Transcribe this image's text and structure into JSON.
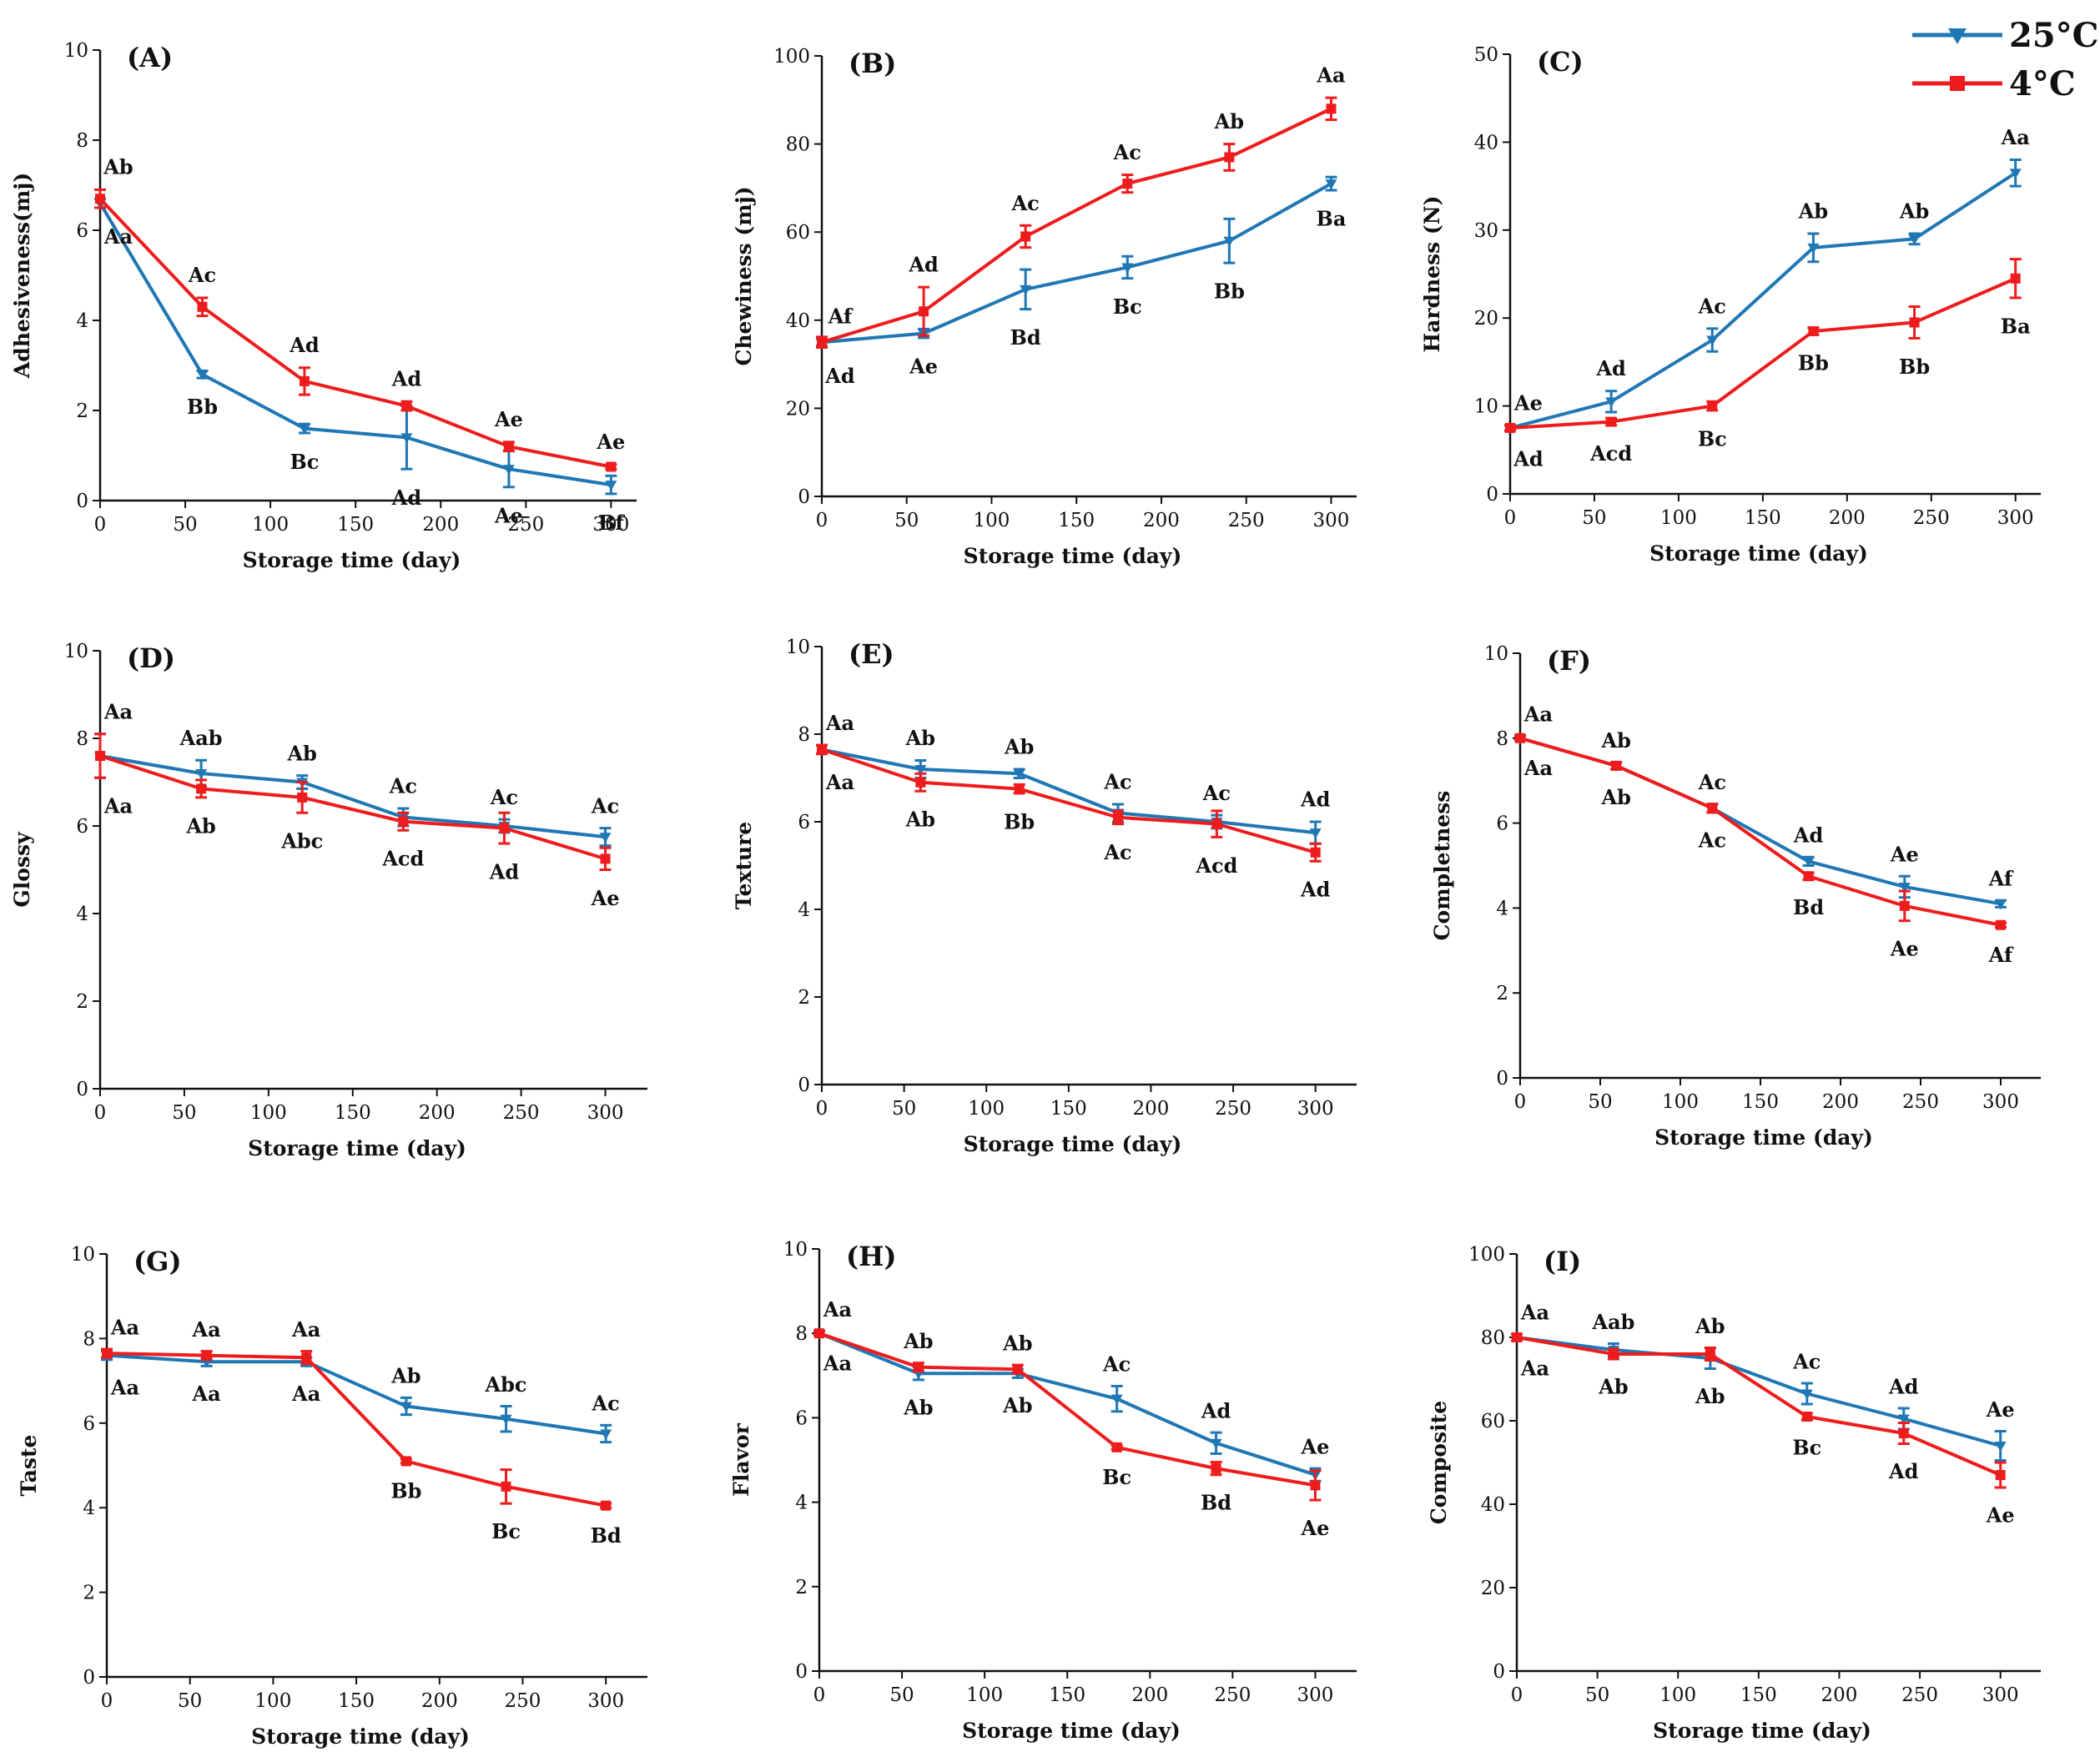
{
  "legend": {
    "items": [
      {
        "label": "25°C",
        "color": "#1f77b4",
        "marker": "triangle-down"
      },
      {
        "label": "4°C",
        "color": "#ee1c1c",
        "marker": "square"
      }
    ]
  },
  "chart_data": [
    {
      "type": "line",
      "title": "(A)",
      "xlabel": "Storage time (day)",
      "ylabel": "Adhesiveness(mj)",
      "x": [
        0,
        60,
        120,
        180,
        240,
        300
      ],
      "xlim": [
        0,
        315
      ],
      "ylim": [
        0,
        10
      ],
      "xticks": [
        0,
        50,
        100,
        150,
        200,
        250,
        300
      ],
      "yticks": [
        0,
        2,
        4,
        6,
        8,
        10
      ],
      "series": [
        {
          "name": "25°C",
          "values": [
            6.6,
            2.8,
            1.6,
            1.4,
            0.7,
            0.35
          ],
          "errors": [
            0.1,
            0.08,
            0.1,
            0.7,
            0.4,
            0.2
          ],
          "labels": [
            "Aa",
            "Bb",
            "Bc",
            "Ad",
            "Ae",
            "Bf"
          ]
        },
        {
          "name": "4°C",
          "values": [
            6.7,
            4.3,
            2.65,
            2.1,
            1.2,
            0.75
          ],
          "errors": [
            0.2,
            0.2,
            0.3,
            0.1,
            0.1,
            0.05
          ],
          "labels": [
            "Ab",
            "Ac",
            "Ad",
            "Ad",
            "Ae",
            "Ae"
          ]
        }
      ]
    },
    {
      "type": "line",
      "title": "(B)",
      "xlabel": "Storage time (day)",
      "ylabel": "Chewiness (mj)",
      "x": [
        0,
        60,
        120,
        180,
        240,
        300
      ],
      "xlim": [
        0,
        315
      ],
      "ylim": [
        0,
        100
      ],
      "xticks": [
        0,
        50,
        100,
        150,
        200,
        250,
        300
      ],
      "yticks": [
        0,
        20,
        40,
        60,
        80,
        100
      ],
      "series": [
        {
          "name": "25°C",
          "values": [
            35,
            37,
            47,
            52,
            58,
            71
          ],
          "errors": [
            0.8,
            1.0,
            4.5,
            2.5,
            5,
            1.5
          ],
          "labels": [
            "Af",
            "Ae",
            "Bd",
            "Bc",
            "Bb",
            "Ba"
          ]
        },
        {
          "name": "4°C",
          "values": [
            35,
            42,
            59,
            71,
            77,
            88
          ],
          "errors": [
            1.2,
            5.5,
            2.5,
            2,
            3,
            2.5
          ],
          "labels": [
            "Ad",
            "Ad",
            "Ac",
            "Ac",
            "Ab",
            "Aa"
          ]
        }
      ]
    },
    {
      "type": "line",
      "title": "(C)",
      "xlabel": "Storage time (day)",
      "ylabel": "Hardness (N)",
      "x": [
        0,
        60,
        120,
        180,
        240,
        300
      ],
      "xlim": [
        0,
        315
      ],
      "ylim": [
        0,
        50
      ],
      "xticks": [
        0,
        50,
        100,
        150,
        200,
        250,
        300
      ],
      "yticks": [
        0,
        10,
        20,
        30,
        40,
        50
      ],
      "series": [
        {
          "name": "25°C",
          "values": [
            7.5,
            10.5,
            17.5,
            28,
            29,
            36.5
          ],
          "errors": [
            0.3,
            1.2,
            1.3,
            1.6,
            0.6,
            1.5
          ],
          "labels": [
            "Ae",
            "Ad",
            "Ac",
            "Ab",
            "Ab",
            "Aa"
          ]
        },
        {
          "name": "4°C",
          "values": [
            7.5,
            8.2,
            10,
            18.5,
            19.5,
            24.5
          ],
          "errors": [
            0.3,
            0.4,
            0.5,
            0.4,
            1.8,
            2.2
          ],
          "labels": [
            "Ad",
            "Acd",
            "Bc",
            "Bb",
            "Bb",
            "Ba"
          ]
        }
      ]
    },
    {
      "type": "line",
      "title": "(D)",
      "xlabel": "Storage time (day)",
      "ylabel": "Glossy",
      "x": [
        0,
        60,
        120,
        180,
        240,
        300
      ],
      "xlim": [
        0,
        325
      ],
      "ylim": [
        0,
        10
      ],
      "xticks": [
        0,
        50,
        100,
        150,
        200,
        250,
        300
      ],
      "yticks": [
        0,
        2,
        4,
        6,
        8,
        10
      ],
      "series": [
        {
          "name": "25°C",
          "values": [
            7.6,
            7.2,
            7.0,
            6.2,
            6.0,
            5.75
          ],
          "errors": [
            0.5,
            0.3,
            0.15,
            0.2,
            0.15,
            0.2
          ],
          "labels": [
            "Aa",
            "Aab",
            "Ab",
            "Ac",
            "Ac",
            "Ac"
          ]
        },
        {
          "name": "4°C",
          "values": [
            7.6,
            6.85,
            6.65,
            6.1,
            5.95,
            5.25
          ],
          "errors": [
            0.5,
            0.2,
            0.35,
            0.2,
            0.35,
            0.25
          ],
          "labels": [
            "Aa",
            "Ab",
            "Abc",
            "Acd",
            "Ad",
            "Ae"
          ]
        }
      ]
    },
    {
      "type": "line",
      "title": "(E)",
      "xlabel": "Storage time (day)",
      "ylabel": "Texture",
      "x": [
        0,
        60,
        120,
        180,
        240,
        300
      ],
      "xlim": [
        0,
        325
      ],
      "ylim": [
        0,
        10
      ],
      "xticks": [
        0,
        50,
        100,
        150,
        200,
        250,
        300
      ],
      "yticks": [
        0,
        2,
        4,
        6,
        8,
        10
      ],
      "series": [
        {
          "name": "25°C",
          "values": [
            7.65,
            7.2,
            7.1,
            6.2,
            6.0,
            5.75
          ],
          "errors": [
            0.1,
            0.2,
            0.1,
            0.2,
            0.15,
            0.25
          ],
          "labels": [
            "Aa",
            "Ab",
            "Ab",
            "Ac",
            "Ac",
            "Ad"
          ]
        },
        {
          "name": "4°C",
          "values": [
            7.65,
            6.9,
            6.75,
            6.1,
            5.95,
            5.3
          ],
          "errors": [
            0.1,
            0.2,
            0.1,
            0.15,
            0.3,
            0.2
          ],
          "labels": [
            "Aa",
            "Ab",
            "Bb",
            "Ac",
            "Acd",
            "Ad"
          ]
        }
      ]
    },
    {
      "type": "line",
      "title": "(F)",
      "xlabel": "Storage time (day)",
      "ylabel": "Completness",
      "x": [
        0,
        60,
        120,
        180,
        240,
        300
      ],
      "xlim": [
        0,
        325
      ],
      "ylim": [
        0,
        10
      ],
      "xticks": [
        0,
        50,
        100,
        150,
        200,
        250,
        300
      ],
      "yticks": [
        0,
        2,
        4,
        6,
        8,
        10
      ],
      "series": [
        {
          "name": "25°C",
          "values": [
            8.0,
            7.35,
            6.35,
            5.1,
            4.5,
            4.1
          ],
          "errors": [
            0.05,
            0.08,
            0.1,
            0.1,
            0.25,
            0.08
          ],
          "labels": [
            "Aa",
            "Ab",
            "Ac",
            "Ad",
            "Ae",
            "Af"
          ]
        },
        {
          "name": "4°C",
          "values": [
            8.0,
            7.35,
            6.35,
            4.75,
            4.05,
            3.6
          ],
          "errors": [
            0.05,
            0.08,
            0.1,
            0.08,
            0.35,
            0.05
          ],
          "labels": [
            "Aa",
            "Ab",
            "Ac",
            "Bd",
            "Ae",
            "Af"
          ]
        }
      ]
    },
    {
      "type": "line",
      "title": "(G)",
      "xlabel": "Storage time (day)",
      "ylabel": "Taste",
      "x": [
        0,
        60,
        120,
        180,
        240,
        300
      ],
      "xlim": [
        0,
        325
      ],
      "ylim": [
        0,
        10
      ],
      "xticks": [
        0,
        50,
        100,
        150,
        200,
        250,
        300
      ],
      "yticks": [
        0,
        2,
        4,
        6,
        8,
        10
      ],
      "series": [
        {
          "name": "25°C",
          "values": [
            7.6,
            7.45,
            7.45,
            6.4,
            6.1,
            5.75
          ],
          "errors": [
            0.1,
            0.1,
            0.1,
            0.2,
            0.3,
            0.2
          ],
          "labels": [
            "Aa",
            "Aa",
            "Aa",
            "Ab",
            "Abc",
            "Ac"
          ]
        },
        {
          "name": "4°C",
          "values": [
            7.65,
            7.6,
            7.55,
            5.1,
            4.5,
            4.05
          ],
          "errors": [
            0.1,
            0.1,
            0.15,
            0.05,
            0.4,
            0.05
          ],
          "labels": [
            "Aa",
            "Aa",
            "Aa",
            "Bb",
            "Bc",
            "Bd"
          ]
        }
      ]
    },
    {
      "type": "line",
      "title": "(H)",
      "xlabel": "Storage time (day)",
      "ylabel": "Flavor",
      "x": [
        0,
        60,
        120,
        180,
        240,
        300
      ],
      "xlim": [
        0,
        325
      ],
      "ylim": [
        0,
        10
      ],
      "xticks": [
        0,
        50,
        100,
        150,
        200,
        250,
        300
      ],
      "yticks": [
        0,
        2,
        4,
        6,
        8,
        10
      ],
      "series": [
        {
          "name": "25°C",
          "values": [
            8.0,
            7.05,
            7.05,
            6.45,
            5.4,
            4.65
          ],
          "errors": [
            0.05,
            0.15,
            0.1,
            0.3,
            0.25,
            0.15
          ],
          "labels": [
            "Aa",
            "Ab",
            "Ab",
            "Ac",
            "Ad",
            "Ae"
          ]
        },
        {
          "name": "4°C",
          "values": [
            8.0,
            7.2,
            7.15,
            5.3,
            4.8,
            4.4
          ],
          "errors": [
            0.05,
            0.1,
            0.1,
            0.05,
            0.15,
            0.35
          ],
          "labels": [
            "Aa",
            "Ab",
            "Ab",
            "Bc",
            "Bd",
            "Ae"
          ]
        }
      ]
    },
    {
      "type": "line",
      "title": "(I)",
      "xlabel": "Storage time (day)",
      "ylabel": "Composite",
      "x": [
        0,
        60,
        120,
        180,
        240,
        300
      ],
      "xlim": [
        0,
        325
      ],
      "ylim": [
        0,
        100
      ],
      "xticks": [
        0,
        50,
        100,
        150,
        200,
        250,
        300
      ],
      "yticks": [
        0,
        20,
        40,
        60,
        80,
        100
      ],
      "series": [
        {
          "name": "25°C",
          "values": [
            80,
            77,
            75,
            66.5,
            60.5,
            54
          ],
          "errors": [
            0.8,
            1.5,
            2.5,
            2.5,
            2.5,
            3.5
          ],
          "labels": [
            "Aa",
            "Aab",
            "Ab",
            "Ac",
            "Ad",
            "Ae"
          ]
        },
        {
          "name": "4°C",
          "values": [
            80,
            76,
            76,
            61,
            57,
            47
          ],
          "errors": [
            0.8,
            1.2,
            1.5,
            0.8,
            2.5,
            3.0
          ],
          "labels": [
            "Aa",
            "Ab",
            "Ab",
            "Bc",
            "Ad",
            "Ae"
          ]
        }
      ]
    }
  ]
}
